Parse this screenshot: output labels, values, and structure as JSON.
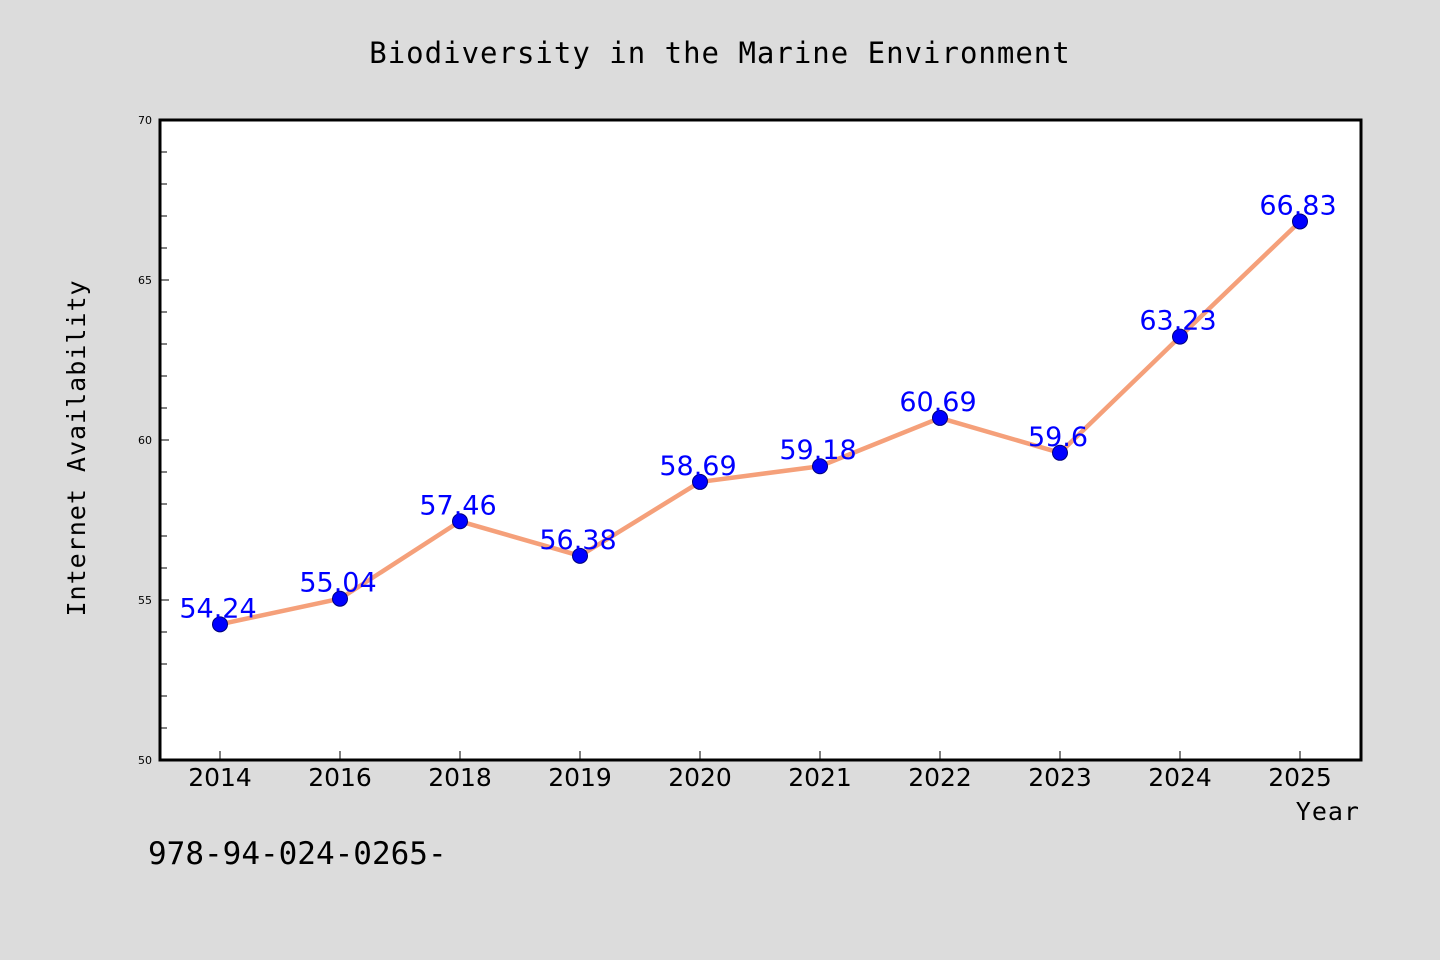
{
  "chart_data": {
    "type": "line",
    "title": "Biodiversity in the Marine Environment",
    "xlabel": "Year",
    "ylabel": "Internet Availability",
    "categories": [
      "2014",
      "2016",
      "2018",
      "2019",
      "2020",
      "2021",
      "2022",
      "2023",
      "2024",
      "2025"
    ],
    "series": [
      {
        "values": [
          54.24,
          55.04,
          57.46,
          56.38,
          58.69,
          59.18,
          60.69,
          59.6,
          63.23,
          66.83
        ],
        "data_labels": [
          "54.24",
          "55.04",
          "57.46",
          "56.38",
          "58.69",
          "59.18",
          "60.69",
          "59.6",
          "63.23",
          "66.83"
        ],
        "line_color": "#f5a07a",
        "marker_color": "#0000ff"
      }
    ],
    "ylim": [
      50,
      70
    ],
    "yticks": [
      "50",
      "55",
      "60",
      "65",
      "70"
    ],
    "grid": false,
    "legend": "none"
  },
  "footer": {
    "text": "978-94-024-0265-"
  },
  "colors": {
    "background": "#dcdcdc",
    "plot_background": "#ffffff",
    "data_label": "#0000ff"
  }
}
